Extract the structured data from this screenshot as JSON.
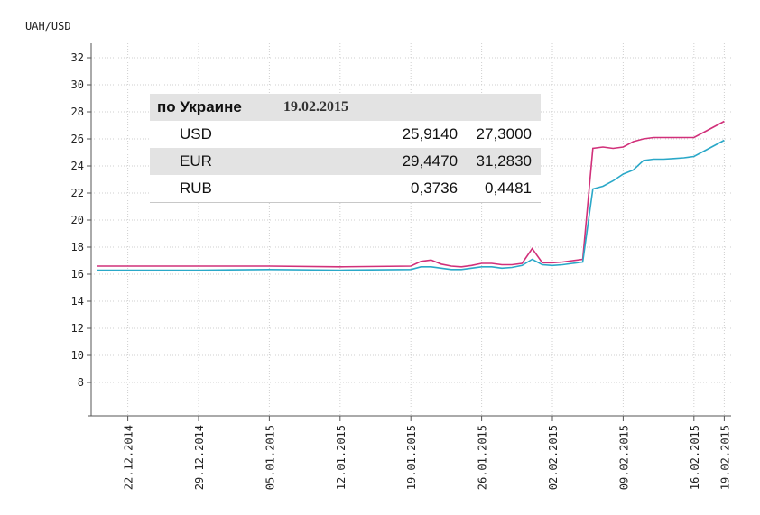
{
  "chart_data": {
    "type": "line",
    "y_unit_label": "UAH/USD",
    "ylim": [
      6,
      33
    ],
    "y_ticks": [
      8,
      10,
      12,
      14,
      16,
      18,
      20,
      22,
      24,
      26,
      28,
      30,
      32
    ],
    "x_tick_labels": [
      "22.12.2014",
      "29.12.2014",
      "05.01.2015",
      "12.01.2015",
      "19.01.2015",
      "26.01.2015",
      "02.02.2015",
      "09.02.2015",
      "16.02.2015",
      "19.02.2015"
    ],
    "x_tick_days": [
      3,
      10,
      17,
      24,
      31,
      38,
      45,
      52,
      59,
      62
    ],
    "x_start_label": "19.12.2014",
    "grid": true,
    "series": [
      {
        "color": "#d1307a",
        "points": [
          [
            0,
            16.6
          ],
          [
            3,
            16.6
          ],
          [
            10,
            16.6
          ],
          [
            17,
            16.6
          ],
          [
            24,
            16.55
          ],
          [
            31,
            16.6
          ],
          [
            32,
            16.95
          ],
          [
            33,
            17.05
          ],
          [
            34,
            16.75
          ],
          [
            35,
            16.6
          ],
          [
            36,
            16.55
          ],
          [
            37,
            16.65
          ],
          [
            38,
            16.8
          ],
          [
            39,
            16.8
          ],
          [
            40,
            16.7
          ],
          [
            41,
            16.7
          ],
          [
            42,
            16.8
          ],
          [
            43,
            17.9
          ],
          [
            44,
            16.85
          ],
          [
            45,
            16.85
          ],
          [
            46,
            16.9
          ],
          [
            47,
            17.0
          ],
          [
            48,
            17.1
          ],
          [
            49,
            25.3
          ],
          [
            50,
            25.4
          ],
          [
            51,
            25.3
          ],
          [
            52,
            25.4
          ],
          [
            53,
            25.8
          ],
          [
            54,
            26.0
          ],
          [
            55,
            26.1
          ],
          [
            56,
            26.1
          ],
          [
            57,
            26.1
          ],
          [
            58,
            26.1
          ],
          [
            59,
            26.1
          ],
          [
            60,
            26.5
          ],
          [
            61,
            26.9
          ],
          [
            62,
            27.3
          ]
        ]
      },
      {
        "color": "#2aa8c8",
        "points": [
          [
            0,
            16.3
          ],
          [
            3,
            16.3
          ],
          [
            10,
            16.3
          ],
          [
            17,
            16.35
          ],
          [
            24,
            16.3
          ],
          [
            31,
            16.35
          ],
          [
            32,
            16.55
          ],
          [
            33,
            16.55
          ],
          [
            34,
            16.45
          ],
          [
            35,
            16.35
          ],
          [
            36,
            16.35
          ],
          [
            37,
            16.45
          ],
          [
            38,
            16.55
          ],
          [
            39,
            16.55
          ],
          [
            40,
            16.45
          ],
          [
            41,
            16.5
          ],
          [
            42,
            16.65
          ],
          [
            43,
            17.1
          ],
          [
            44,
            16.7
          ],
          [
            45,
            16.65
          ],
          [
            46,
            16.7
          ],
          [
            47,
            16.8
          ],
          [
            48,
            16.9
          ],
          [
            49,
            22.3
          ],
          [
            50,
            22.5
          ],
          [
            51,
            22.9
          ],
          [
            52,
            23.4
          ],
          [
            53,
            23.7
          ],
          [
            54,
            24.4
          ],
          [
            55,
            24.5
          ],
          [
            56,
            24.5
          ],
          [
            57,
            24.55
          ],
          [
            58,
            24.6
          ],
          [
            59,
            24.7
          ],
          [
            60,
            25.1
          ],
          [
            61,
            25.5
          ],
          [
            62,
            25.9
          ]
        ]
      }
    ]
  },
  "rate_table": {
    "region": "по Украине",
    "date": "19.02.2015",
    "rows": [
      {
        "currency": "USD",
        "buy": "25,9140",
        "sell": "27,3000"
      },
      {
        "currency": "EUR",
        "buy": "29,4470",
        "sell": "31,2830"
      },
      {
        "currency": "RUB",
        "buy": "0,3736",
        "sell": "0,4481"
      }
    ]
  }
}
